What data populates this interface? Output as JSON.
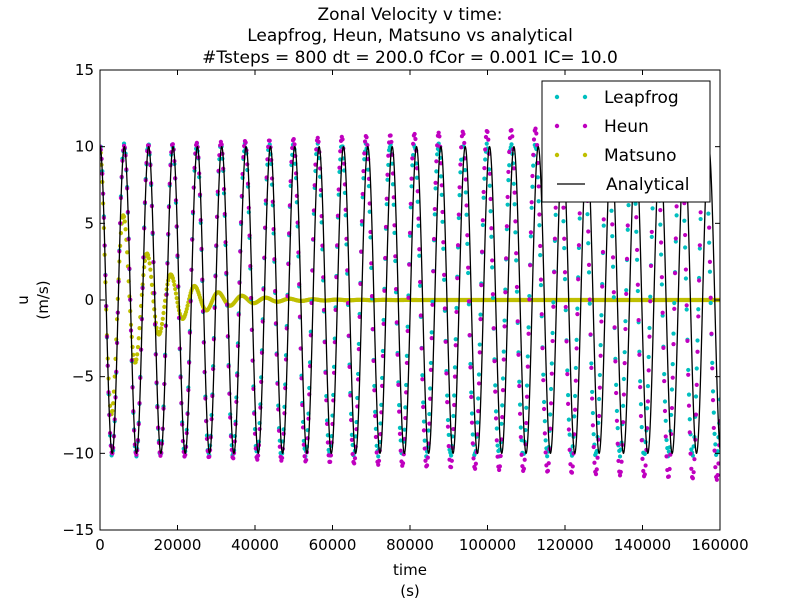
{
  "chart_data": {
    "type": "line",
    "title_lines": [
      "Zonal Velocity v time:",
      "Leapfrog, Heun, Matsuno vs analytical",
      "#Tsteps = 800 dt = 200.0 fCor = 0.001 IC= 10.0"
    ],
    "xlabel_lines": [
      "time",
      "(s)"
    ],
    "ylabel_lines": [
      "u",
      "(m/s)"
    ],
    "xlim": [
      0,
      160000
    ],
    "ylim": [
      -15,
      15
    ],
    "xticks": [
      0,
      20000,
      40000,
      60000,
      80000,
      100000,
      120000,
      140000,
      160000
    ],
    "xtick_labels": [
      "0",
      "20000",
      "40000",
      "60000",
      "80000",
      "100000",
      "120000",
      "140000",
      "160000"
    ],
    "yticks": [
      -15,
      -10,
      -5,
      0,
      5,
      10,
      15
    ],
    "ytick_labels": [
      "−15",
      "−10",
      "−5",
      "0",
      "5",
      "10",
      "15"
    ],
    "grid": false,
    "legend_position": "top-right",
    "params": {
      "nsteps": 800,
      "dt": 200.0,
      "fcor": 0.001,
      "ic": 10.0
    },
    "series": [
      {
        "name": "Leapfrog",
        "style": "markers",
        "color": "#00bfbf",
        "method": "leapfrog"
      },
      {
        "name": "Heun",
        "style": "markers",
        "color": "#bf00bf",
        "method": "heun"
      },
      {
        "name": "Matsuno",
        "style": "markers",
        "color": "#bfbf00",
        "method": "matsuno"
      },
      {
        "name": "Analytical",
        "style": "line",
        "color": "#000000",
        "method": "analytical"
      }
    ]
  }
}
